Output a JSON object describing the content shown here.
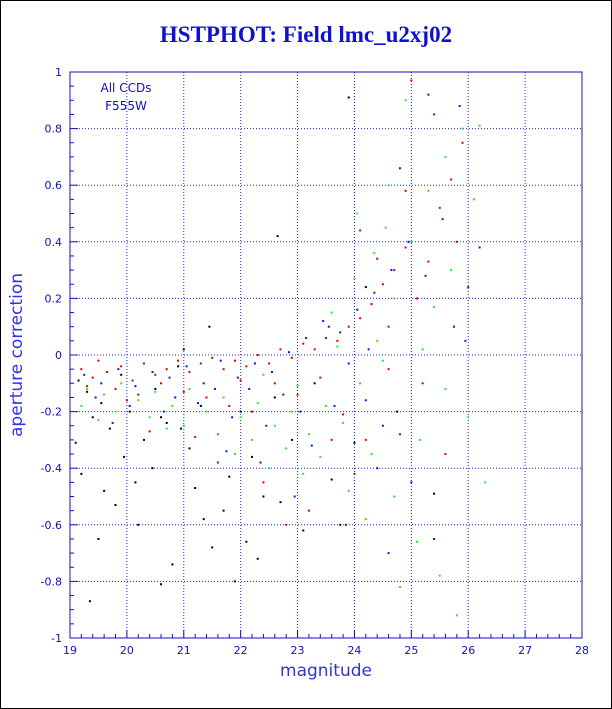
{
  "chart_data": {
    "type": "scatter",
    "title": "HSTPHOT: Field lmc_u2xj02",
    "xlabel": "magnitude",
    "ylabel": "aperture correction",
    "xlim": [
      19,
      28
    ],
    "ylim": [
      -1,
      1
    ],
    "x_ticks": [
      "19",
      "20",
      "21",
      "22",
      "23",
      "24",
      "25",
      "26",
      "27",
      "28"
    ],
    "y_ticks": [
      "1",
      "0.8",
      "0.6",
      "0.4",
      "0.2",
      "0",
      "-0.2",
      "-0.4",
      "-0.6",
      "-0.8",
      "-1"
    ],
    "annotations": [
      "All CCDs",
      "F555W"
    ],
    "grid": "dotted",
    "colors": {
      "axis": "#1010c0",
      "grid": "#2222dd",
      "title": "#1010d0"
    },
    "series": [
      {
        "color": "#000000",
        "points": [
          [
            19.15,
            -0.09
          ],
          [
            19.3,
            -0.13
          ],
          [
            19.4,
            -0.22
          ],
          [
            19.55,
            -0.17
          ],
          [
            19.7,
            -0.26
          ],
          [
            19.9,
            -0.07
          ],
          [
            20.05,
            -0.2
          ],
          [
            20.3,
            -0.3
          ],
          [
            20.5,
            -0.12
          ],
          [
            20.7,
            -0.24
          ],
          [
            20.9,
            -0.04
          ],
          [
            21.1,
            -0.33
          ],
          [
            21.3,
            -0.18
          ],
          [
            21.45,
            0.1
          ],
          [
            21.6,
            -0.28
          ],
          [
            21.8,
            -0.43
          ],
          [
            22.0,
            -0.2
          ],
          [
            22.2,
            -0.36
          ],
          [
            22.4,
            -0.5
          ],
          [
            22.6,
            -0.15
          ],
          [
            19.2,
            -0.42
          ],
          [
            19.5,
            -0.65
          ],
          [
            19.35,
            -0.87
          ],
          [
            19.8,
            -0.53
          ],
          [
            20.2,
            -0.6
          ],
          [
            20.6,
            -0.81
          ],
          [
            20.8,
            -0.74
          ],
          [
            21.2,
            -0.47
          ],
          [
            21.5,
            -0.68
          ],
          [
            21.9,
            -0.8
          ],
          [
            22.3,
            -0.72
          ],
          [
            22.7,
            -0.52
          ],
          [
            23.1,
            -0.62
          ],
          [
            23.6,
            -0.44
          ],
          [
            24.0,
            -0.31
          ],
          [
            24.2,
            0.24
          ],
          [
            23.9,
            0.91
          ],
          [
            22.65,
            0.42
          ],
          [
            19.95,
            -0.36
          ],
          [
            20.45,
            -0.4
          ],
          [
            20.95,
            -0.26
          ],
          [
            21.7,
            -0.55
          ],
          [
            22.1,
            -0.66
          ],
          [
            22.9,
            -0.3
          ],
          [
            23.3,
            -0.1
          ],
          [
            19.6,
            -0.48
          ],
          [
            20.15,
            -0.45
          ],
          [
            21.35,
            -0.58
          ],
          [
            25.4,
            -0.49
          ],
          [
            24.75,
            -0.2
          ],
          [
            23.75,
            -0.6
          ],
          [
            20.6,
            -0.22
          ],
          [
            19.1,
            -0.31
          ],
          [
            21.0,
            0.02
          ]
        ]
      },
      {
        "color": "#dd0000",
        "points": [
          [
            19.2,
            -0.05
          ],
          [
            19.4,
            -0.08
          ],
          [
            19.65,
            -0.06
          ],
          [
            19.9,
            -0.04
          ],
          [
            20.1,
            -0.09
          ],
          [
            20.3,
            -0.03
          ],
          [
            20.5,
            -0.07
          ],
          [
            20.7,
            -0.05
          ],
          [
            20.9,
            -0.02
          ],
          [
            21.1,
            -0.06
          ],
          [
            21.3,
            -0.03
          ],
          [
            21.5,
            -0.01
          ],
          [
            21.7,
            -0.05
          ],
          [
            21.9,
            -0.02
          ],
          [
            22.1,
            -0.04
          ],
          [
            22.3,
            0.0
          ],
          [
            22.5,
            -0.03
          ],
          [
            22.7,
            0.02
          ],
          [
            22.9,
            -0.01
          ],
          [
            23.1,
            0.04
          ],
          [
            23.3,
            0.02
          ],
          [
            23.5,
            0.06
          ],
          [
            23.7,
            0.05
          ],
          [
            23.9,
            0.1
          ],
          [
            24.1,
            0.13
          ],
          [
            24.3,
            0.18
          ],
          [
            24.5,
            0.25
          ],
          [
            24.7,
            0.3
          ],
          [
            24.9,
            0.38
          ],
          [
            25.1,
            0.2
          ],
          [
            25.3,
            0.33
          ],
          [
            25.5,
            0.52
          ],
          [
            25.7,
            0.62
          ],
          [
            25.9,
            0.75
          ],
          [
            25.0,
            0.97
          ],
          [
            24.4,
            0.34
          ],
          [
            24.6,
            -0.05
          ],
          [
            24.8,
            -0.28
          ],
          [
            25.2,
            -0.1
          ],
          [
            25.6,
            -0.35
          ],
          [
            19.3,
            -0.11
          ],
          [
            19.8,
            -0.12
          ],
          [
            20.2,
            -0.14
          ],
          [
            20.6,
            -0.1
          ],
          [
            21.0,
            -0.13
          ],
          [
            21.4,
            -0.15
          ],
          [
            21.8,
            -0.18
          ],
          [
            22.2,
            -0.2
          ],
          [
            22.6,
            -0.1
          ],
          [
            23.0,
            -0.14
          ],
          [
            23.4,
            -0.08
          ],
          [
            23.8,
            -0.21
          ],
          [
            24.2,
            -0.3
          ],
          [
            22.4,
            -0.45
          ],
          [
            21.6,
            -0.38
          ],
          [
            23.2,
            -0.55
          ],
          [
            24.0,
            -0.42
          ],
          [
            22.8,
            -0.6
          ],
          [
            21.2,
            -0.29
          ],
          [
            20.4,
            -0.27
          ],
          [
            25.8,
            0.4
          ],
          [
            26.0,
            0.24
          ],
          [
            24.9,
            0.58
          ],
          [
            25.4,
            0.85
          ],
          [
            23.6,
            -0.3
          ],
          [
            22.0,
            -0.09
          ],
          [
            19.5,
            -0.02
          ],
          [
            20.0,
            -0.16
          ],
          [
            24.1,
            0.44
          ],
          [
            24.6,
            0.1
          ]
        ]
      },
      {
        "color": "#1111ee",
        "points": [
          [
            19.25,
            -0.07
          ],
          [
            19.55,
            -0.1
          ],
          [
            19.85,
            -0.05
          ],
          [
            20.15,
            -0.11
          ],
          [
            20.45,
            -0.06
          ],
          [
            20.75,
            -0.08
          ],
          [
            21.05,
            -0.04
          ],
          [
            21.35,
            -0.1
          ],
          [
            21.65,
            -0.02
          ],
          [
            21.95,
            -0.08
          ],
          [
            22.25,
            -0.03
          ],
          [
            22.55,
            -0.06
          ],
          [
            22.85,
            0.01
          ],
          [
            23.15,
            0.06
          ],
          [
            23.45,
            0.12
          ],
          [
            23.75,
            0.08
          ],
          [
            24.05,
            0.16
          ],
          [
            24.35,
            0.22
          ],
          [
            24.65,
            0.3
          ],
          [
            24.95,
            0.4
          ],
          [
            25.25,
            0.28
          ],
          [
            25.55,
            0.48
          ],
          [
            25.85,
            0.88
          ],
          [
            25.75,
            0.1
          ],
          [
            23.9,
            -0.03
          ],
          [
            24.2,
            -0.16
          ],
          [
            24.5,
            -0.25
          ],
          [
            25.0,
            -0.45
          ],
          [
            25.4,
            -0.65
          ],
          [
            26.2,
            0.38
          ],
          [
            19.45,
            -0.15
          ],
          [
            20.05,
            -0.18
          ],
          [
            20.65,
            -0.2
          ],
          [
            21.25,
            -0.17
          ],
          [
            21.85,
            -0.22
          ],
          [
            22.45,
            -0.25
          ],
          [
            23.05,
            -0.2
          ],
          [
            23.65,
            -0.18
          ],
          [
            22.15,
            -0.12
          ],
          [
            22.75,
            -0.14
          ],
          [
            21.55,
            -0.12
          ],
          [
            20.85,
            -0.15
          ],
          [
            23.25,
            -0.32
          ],
          [
            24.4,
            -0.4
          ],
          [
            22.95,
            -0.5
          ],
          [
            23.85,
            -0.6
          ],
          [
            24.6,
            -0.7
          ],
          [
            25.95,
            0.05
          ],
          [
            25.3,
            0.92
          ],
          [
            24.8,
            0.66
          ],
          [
            19.75,
            -0.24
          ],
          [
            21.75,
            -0.34
          ],
          [
            22.35,
            -0.38
          ],
          [
            24.25,
            0.02
          ],
          [
            23.55,
            0.1
          ]
        ]
      },
      {
        "color": "#22ee22",
        "points": [
          [
            19.3,
            -0.12
          ],
          [
            19.6,
            -0.14
          ],
          [
            19.9,
            -0.1
          ],
          [
            20.2,
            -0.16
          ],
          [
            20.5,
            -0.13
          ],
          [
            20.8,
            -0.18
          ],
          [
            21.1,
            -0.12
          ],
          [
            21.4,
            -0.2
          ],
          [
            21.7,
            -0.15
          ],
          [
            22.0,
            -0.22
          ],
          [
            22.3,
            -0.17
          ],
          [
            22.6,
            -0.25
          ],
          [
            22.9,
            -0.2
          ],
          [
            23.2,
            -0.28
          ],
          [
            23.5,
            -0.18
          ],
          [
            23.8,
            -0.24
          ],
          [
            24.1,
            -0.1
          ],
          [
            24.4,
            0.05
          ],
          [
            24.7,
            0.2
          ],
          [
            25.0,
            0.4
          ],
          [
            25.3,
            0.58
          ],
          [
            25.6,
            0.7
          ],
          [
            25.9,
            0.8
          ],
          [
            26.1,
            0.55
          ],
          [
            24.9,
            0.9
          ],
          [
            24.6,
            0.6
          ],
          [
            24.3,
            -0.35
          ],
          [
            24.7,
            -0.5
          ],
          [
            25.1,
            -0.66
          ],
          [
            25.5,
            -0.78
          ],
          [
            25.8,
            -0.92
          ],
          [
            26.3,
            -0.45
          ],
          [
            26.0,
            -0.22
          ],
          [
            25.7,
            0.3
          ],
          [
            25.2,
            0.02
          ],
          [
            24.5,
            -0.02
          ],
          [
            23.7,
            0.03
          ],
          [
            23.4,
            -0.36
          ],
          [
            22.8,
            -0.33
          ],
          [
            22.2,
            -0.3
          ],
          [
            21.6,
            -0.28
          ],
          [
            21.0,
            -0.25
          ],
          [
            20.4,
            -0.22
          ],
          [
            19.8,
            -0.2
          ],
          [
            19.2,
            -0.18
          ],
          [
            23.1,
            -0.42
          ],
          [
            23.9,
            -0.48
          ],
          [
            22.5,
            -0.4
          ],
          [
            24.2,
            -0.58
          ],
          [
            24.8,
            -0.82
          ],
          [
            23.6,
            0.15
          ],
          [
            24.0,
            0.27
          ],
          [
            25.4,
            0.17
          ],
          [
            26.2,
            0.81
          ],
          [
            19.5,
            -0.23
          ],
          [
            20.7,
            -0.26
          ],
          [
            21.9,
            -0.35
          ],
          [
            22.4,
            -0.07
          ],
          [
            23.0,
            -0.11
          ],
          [
            24.35,
            0.36
          ],
          [
            25.15,
            -0.3
          ],
          [
            25.6,
            -0.12
          ],
          [
            24.05,
            0.5
          ],
          [
            24.55,
            0.45
          ]
        ]
      }
    ]
  }
}
